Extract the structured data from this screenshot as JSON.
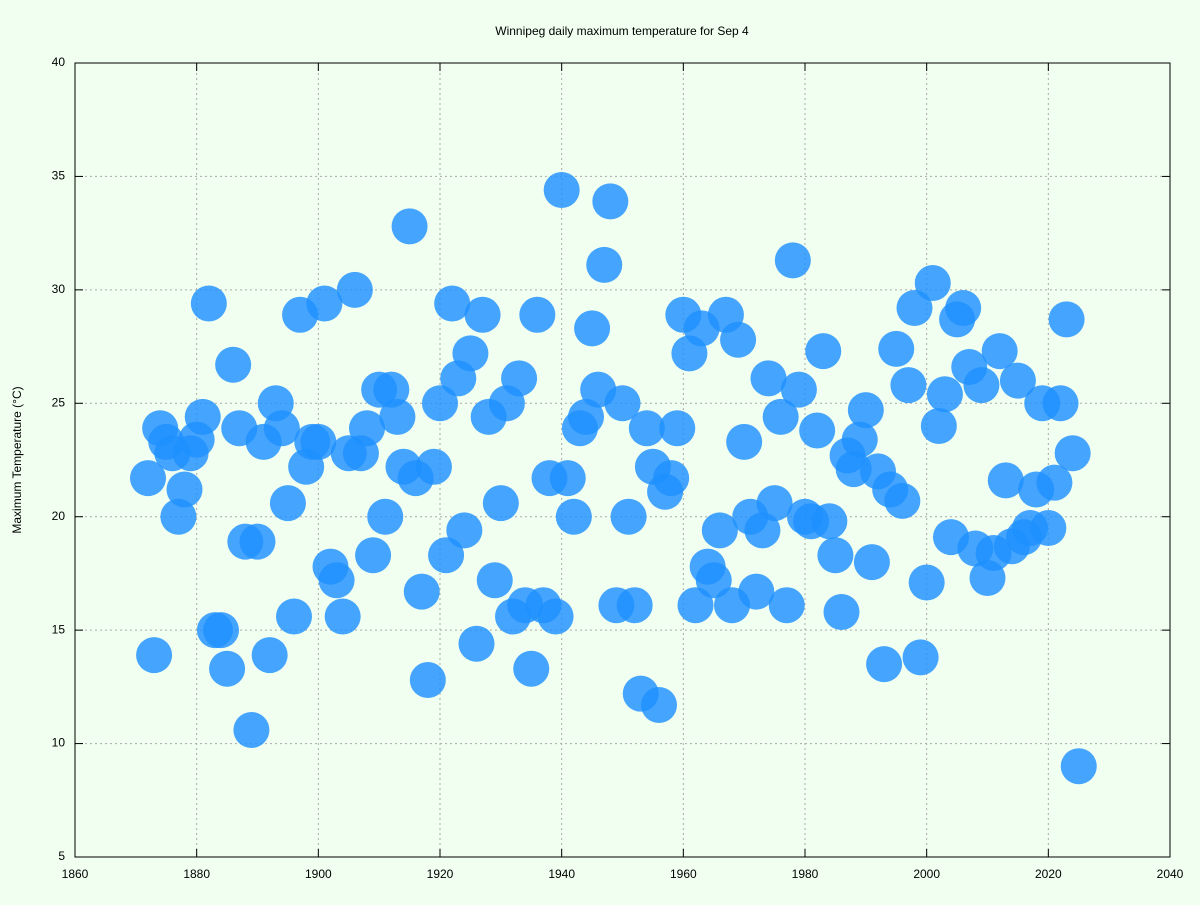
{
  "chart_data": {
    "type": "scatter",
    "title": "Winnipeg daily maximum temperature for Sep 4",
    "y_label": "Maximum Temperature (°C)",
    "color": "#1e90ff",
    "grid": true,
    "xlim": [
      1860,
      2040
    ],
    "xticks": [
      1860,
      1880,
      1900,
      1920,
      1940,
      1960,
      1980,
      2000,
      2020,
      2040
    ],
    "ylim": [
      5,
      40
    ],
    "yticks": [
      5,
      10,
      15,
      20,
      25,
      30,
      35,
      40
    ],
    "x": [
      1872,
      1873,
      1874,
      1875,
      1876,
      1877,
      1878,
      1879,
      1880,
      1881,
      1882,
      1883,
      1884,
      1885,
      1886,
      1887,
      1888,
      1889,
      1890,
      1891,
      1892,
      1893,
      1894,
      1895,
      1896,
      1897,
      1898,
      1899,
      1900,
      1901,
      1902,
      1903,
      1904,
      1905,
      1906,
      1907,
      1908,
      1909,
      1910,
      1911,
      1912,
      1913,
      1914,
      1915,
      1916,
      1917,
      1918,
      1919,
      1920,
      1921,
      1922,
      1923,
      1924,
      1925,
      1926,
      1927,
      1928,
      1929,
      1930,
      1931,
      1932,
      1933,
      1934,
      1935,
      1936,
      1937,
      1938,
      1939,
      1940,
      1941,
      1942,
      1943,
      1944,
      1945,
      1946,
      1947,
      1948,
      1949,
      1950,
      1951,
      1952,
      1953,
      1954,
      1955,
      1956,
      1957,
      1958,
      1959,
      1960,
      1961,
      1962,
      1963,
      1964,
      1965,
      1966,
      1967,
      1968,
      1969,
      1970,
      1971,
      1972,
      1973,
      1974,
      1975,
      1976,
      1977,
      1978,
      1979,
      1980,
      1981,
      1982,
      1983,
      1984,
      1985,
      1986,
      1987,
      1988,
      1989,
      1990,
      1991,
      1992,
      1993,
      1994,
      1995,
      1996,
      1997,
      1998,
      1999,
      2000,
      2001,
      2002,
      2003,
      2004,
      2005,
      2006,
      2007,
      2008,
      2009,
      2010,
      2011,
      2012,
      2013,
      2014,
      2015,
      2016,
      2017,
      2018,
      2019,
      2020,
      2021,
      2022,
      2023,
      2024,
      2025
    ],
    "values": [
      21.7,
      13.9,
      23.9,
      23.3,
      22.8,
      20.0,
      21.2,
      22.8,
      23.4,
      24.4,
      29.4,
      15.0,
      15.0,
      13.3,
      26.7,
      23.9,
      18.9,
      10.6,
      18.9,
      23.3,
      13.9,
      25.0,
      23.9,
      20.6,
      15.6,
      28.9,
      22.2,
      23.3,
      23.3,
      29.4,
      17.8,
      17.2,
      15.6,
      22.8,
      30.0,
      22.8,
      23.9,
      18.3,
      25.6,
      20.0,
      25.6,
      24.4,
      22.2,
      32.8,
      21.7,
      16.7,
      12.8,
      22.2,
      25.0,
      18.3,
      29.4,
      26.1,
      19.4,
      27.2,
      14.4,
      28.9,
      24.4,
      17.2,
      20.6,
      25.0,
      15.6,
      26.1,
      16.1,
      13.3,
      28.9,
      16.1,
      21.7,
      15.6,
      34.4,
      21.7,
      20.0,
      23.9,
      24.4,
      28.3,
      25.6,
      31.1,
      33.9,
      16.1,
      25.0,
      20.0,
      16.1,
      12.2,
      23.9,
      22.2,
      11.7,
      21.1,
      21.7,
      23.9,
      28.9,
      27.2,
      16.1,
      28.3,
      17.8,
      17.2,
      19.4,
      28.9,
      16.1,
      27.8,
      23.3,
      20.0,
      16.7,
      19.4,
      26.1,
      20.6,
      24.4,
      16.1,
      31.3,
      25.6,
      20.0,
      19.8,
      23.8,
      27.3,
      19.8,
      18.3,
      15.8,
      22.7,
      22.1,
      23.4,
      24.7,
      18.0,
      22.0,
      13.5,
      21.2,
      27.4,
      20.7,
      25.8,
      29.2,
      13.8,
      17.1,
      30.3,
      24.0,
      25.4,
      19.1,
      28.7,
      29.2,
      26.6,
      18.6,
      25.8,
      17.3,
      18.4,
      27.3,
      21.6,
      18.7,
      26.0,
      19.1,
      19.5,
      21.2,
      25.0,
      19.5,
      21.5,
      25.0,
      28.7,
      22.8,
      9.0
    ]
  }
}
